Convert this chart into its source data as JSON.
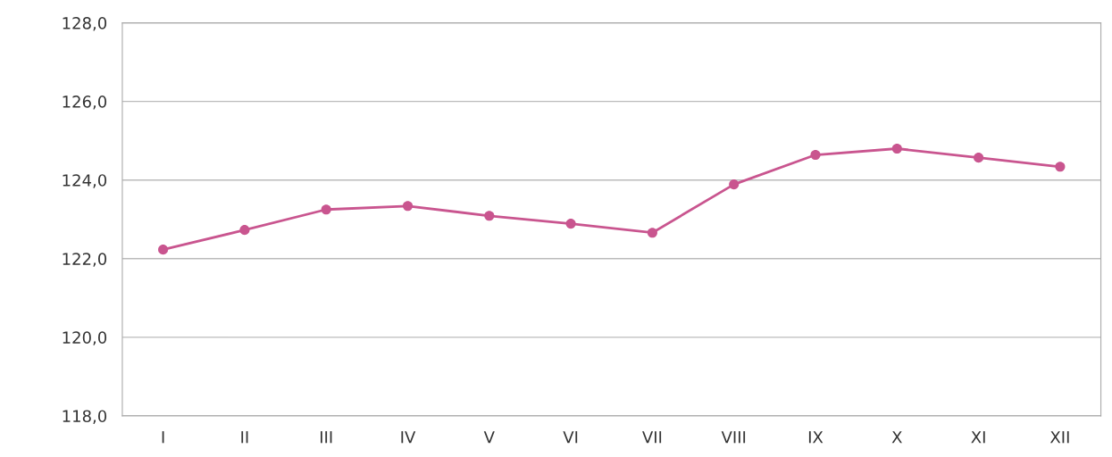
{
  "chart_data": {
    "type": "line",
    "categories": [
      "I",
      "II",
      "III",
      "IV",
      "V",
      "VI",
      "VII",
      "VIII",
      "IX",
      "X",
      "XI",
      "XII"
    ],
    "series": [
      {
        "color": "#c9558f",
        "values": [
          122.23,
          122.73,
          123.25,
          123.34,
          123.09,
          122.89,
          122.66,
          123.89,
          124.64,
          124.8,
          124.57,
          124.34
        ]
      }
    ],
    "ylim": [
      118,
      128
    ],
    "yticks": [
      {
        "value": 118,
        "label": "118,0"
      },
      {
        "value": 120,
        "label": "120,0"
      },
      {
        "value": 122,
        "label": "122,0"
      },
      {
        "value": 124,
        "label": "124,0"
      },
      {
        "value": 126,
        "label": "126,0"
      },
      {
        "value": 128,
        "label": "128,0"
      }
    ],
    "grid": "y",
    "marker": "circle",
    "line_style": "solid"
  }
}
